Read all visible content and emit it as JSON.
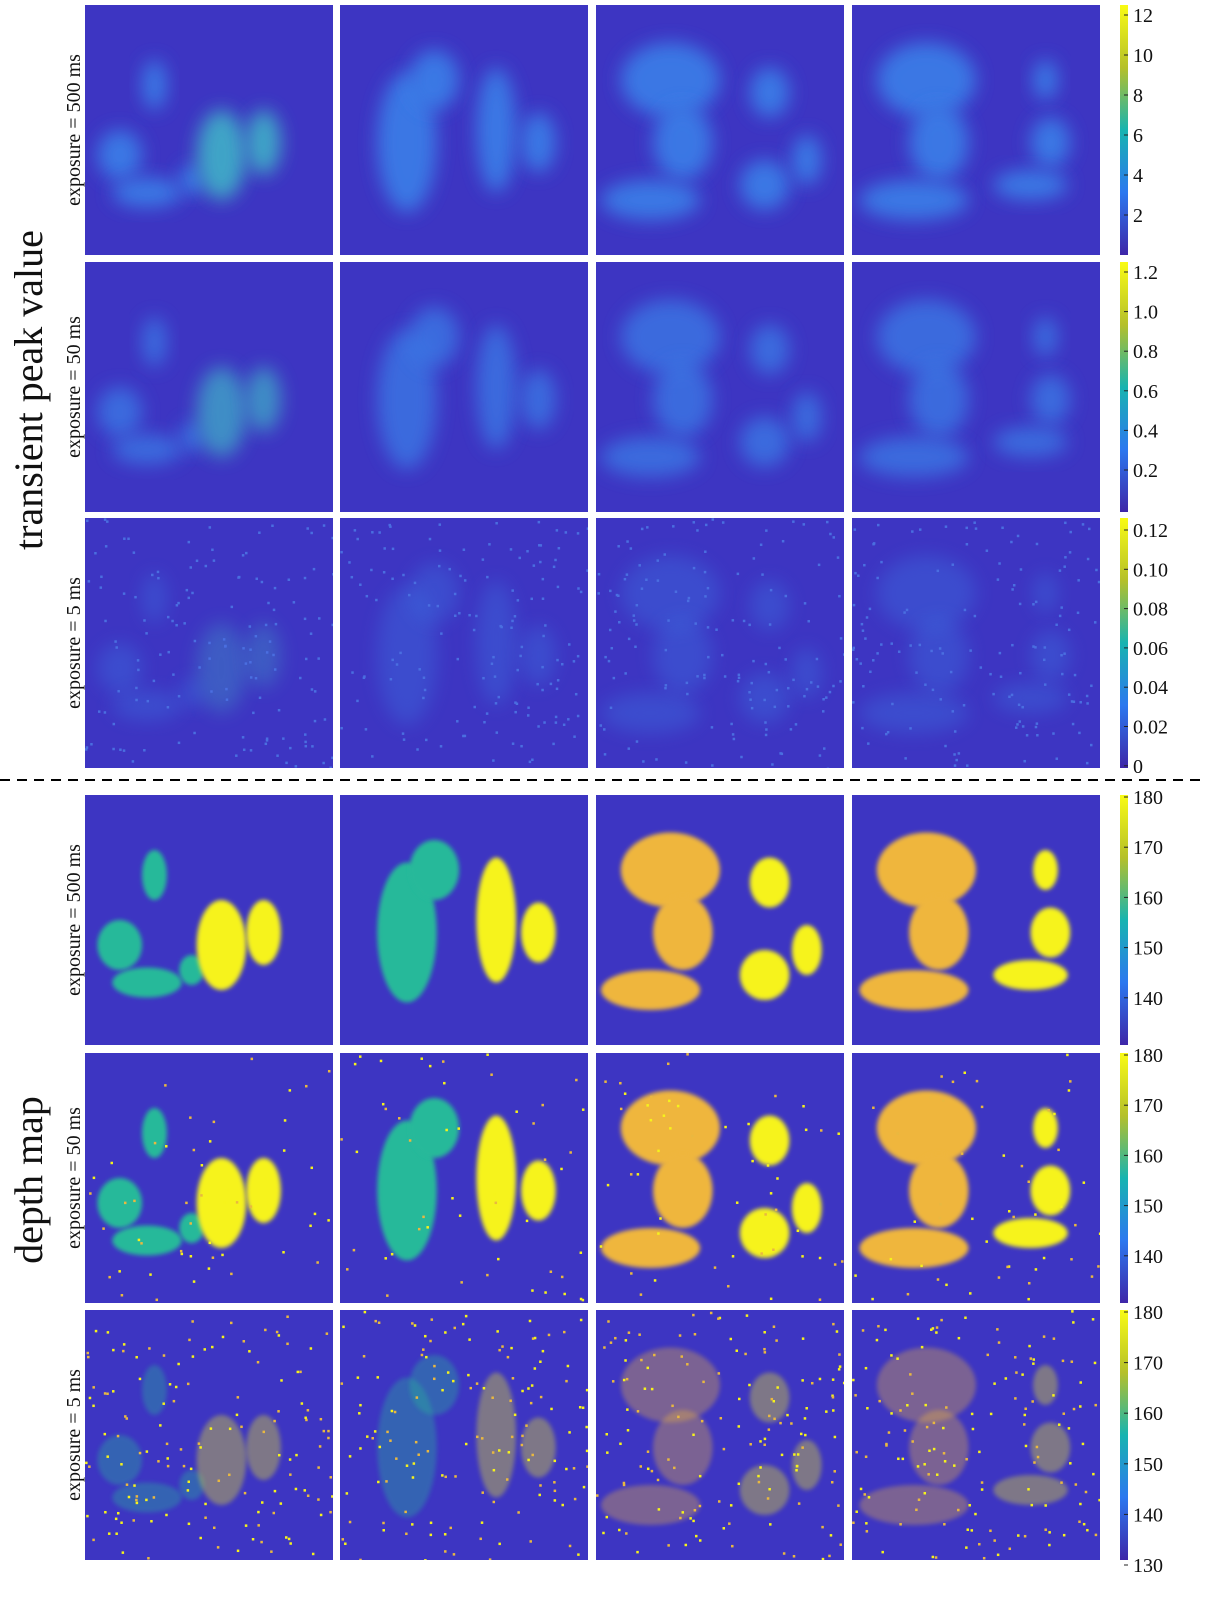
{
  "sections": [
    {
      "label": "transient peak value",
      "rows": [
        {
          "label": "exposure = 500 ms",
          "colorbar_ticks": [
            "12",
            "10",
            "8",
            "6",
            "4",
            "2"
          ]
        },
        {
          "label": "exposure = 50 ms",
          "colorbar_ticks": [
            "1.2",
            "1.0",
            "0.8",
            "0.6",
            "0.4",
            "0.2"
          ]
        },
        {
          "label": "exposure = 5 ms",
          "colorbar_ticks": [
            "0.12",
            "0.10",
            "0.08",
            "0.06",
            "0.04",
            "0.02",
            "0"
          ]
        }
      ]
    },
    {
      "label": "depth map",
      "rows": [
        {
          "label": "exposure = 500 ms",
          "colorbar_ticks": [
            "180",
            "170",
            "160",
            "150",
            "140"
          ]
        },
        {
          "label": "exposure = 50 ms",
          "colorbar_ticks": [
            "180",
            "170",
            "160",
            "150",
            "140"
          ]
        },
        {
          "label": "exposure = 5 ms",
          "colorbar_ticks": [
            "180",
            "170",
            "160",
            "150",
            "140",
            "130"
          ]
        }
      ]
    }
  ]
}
